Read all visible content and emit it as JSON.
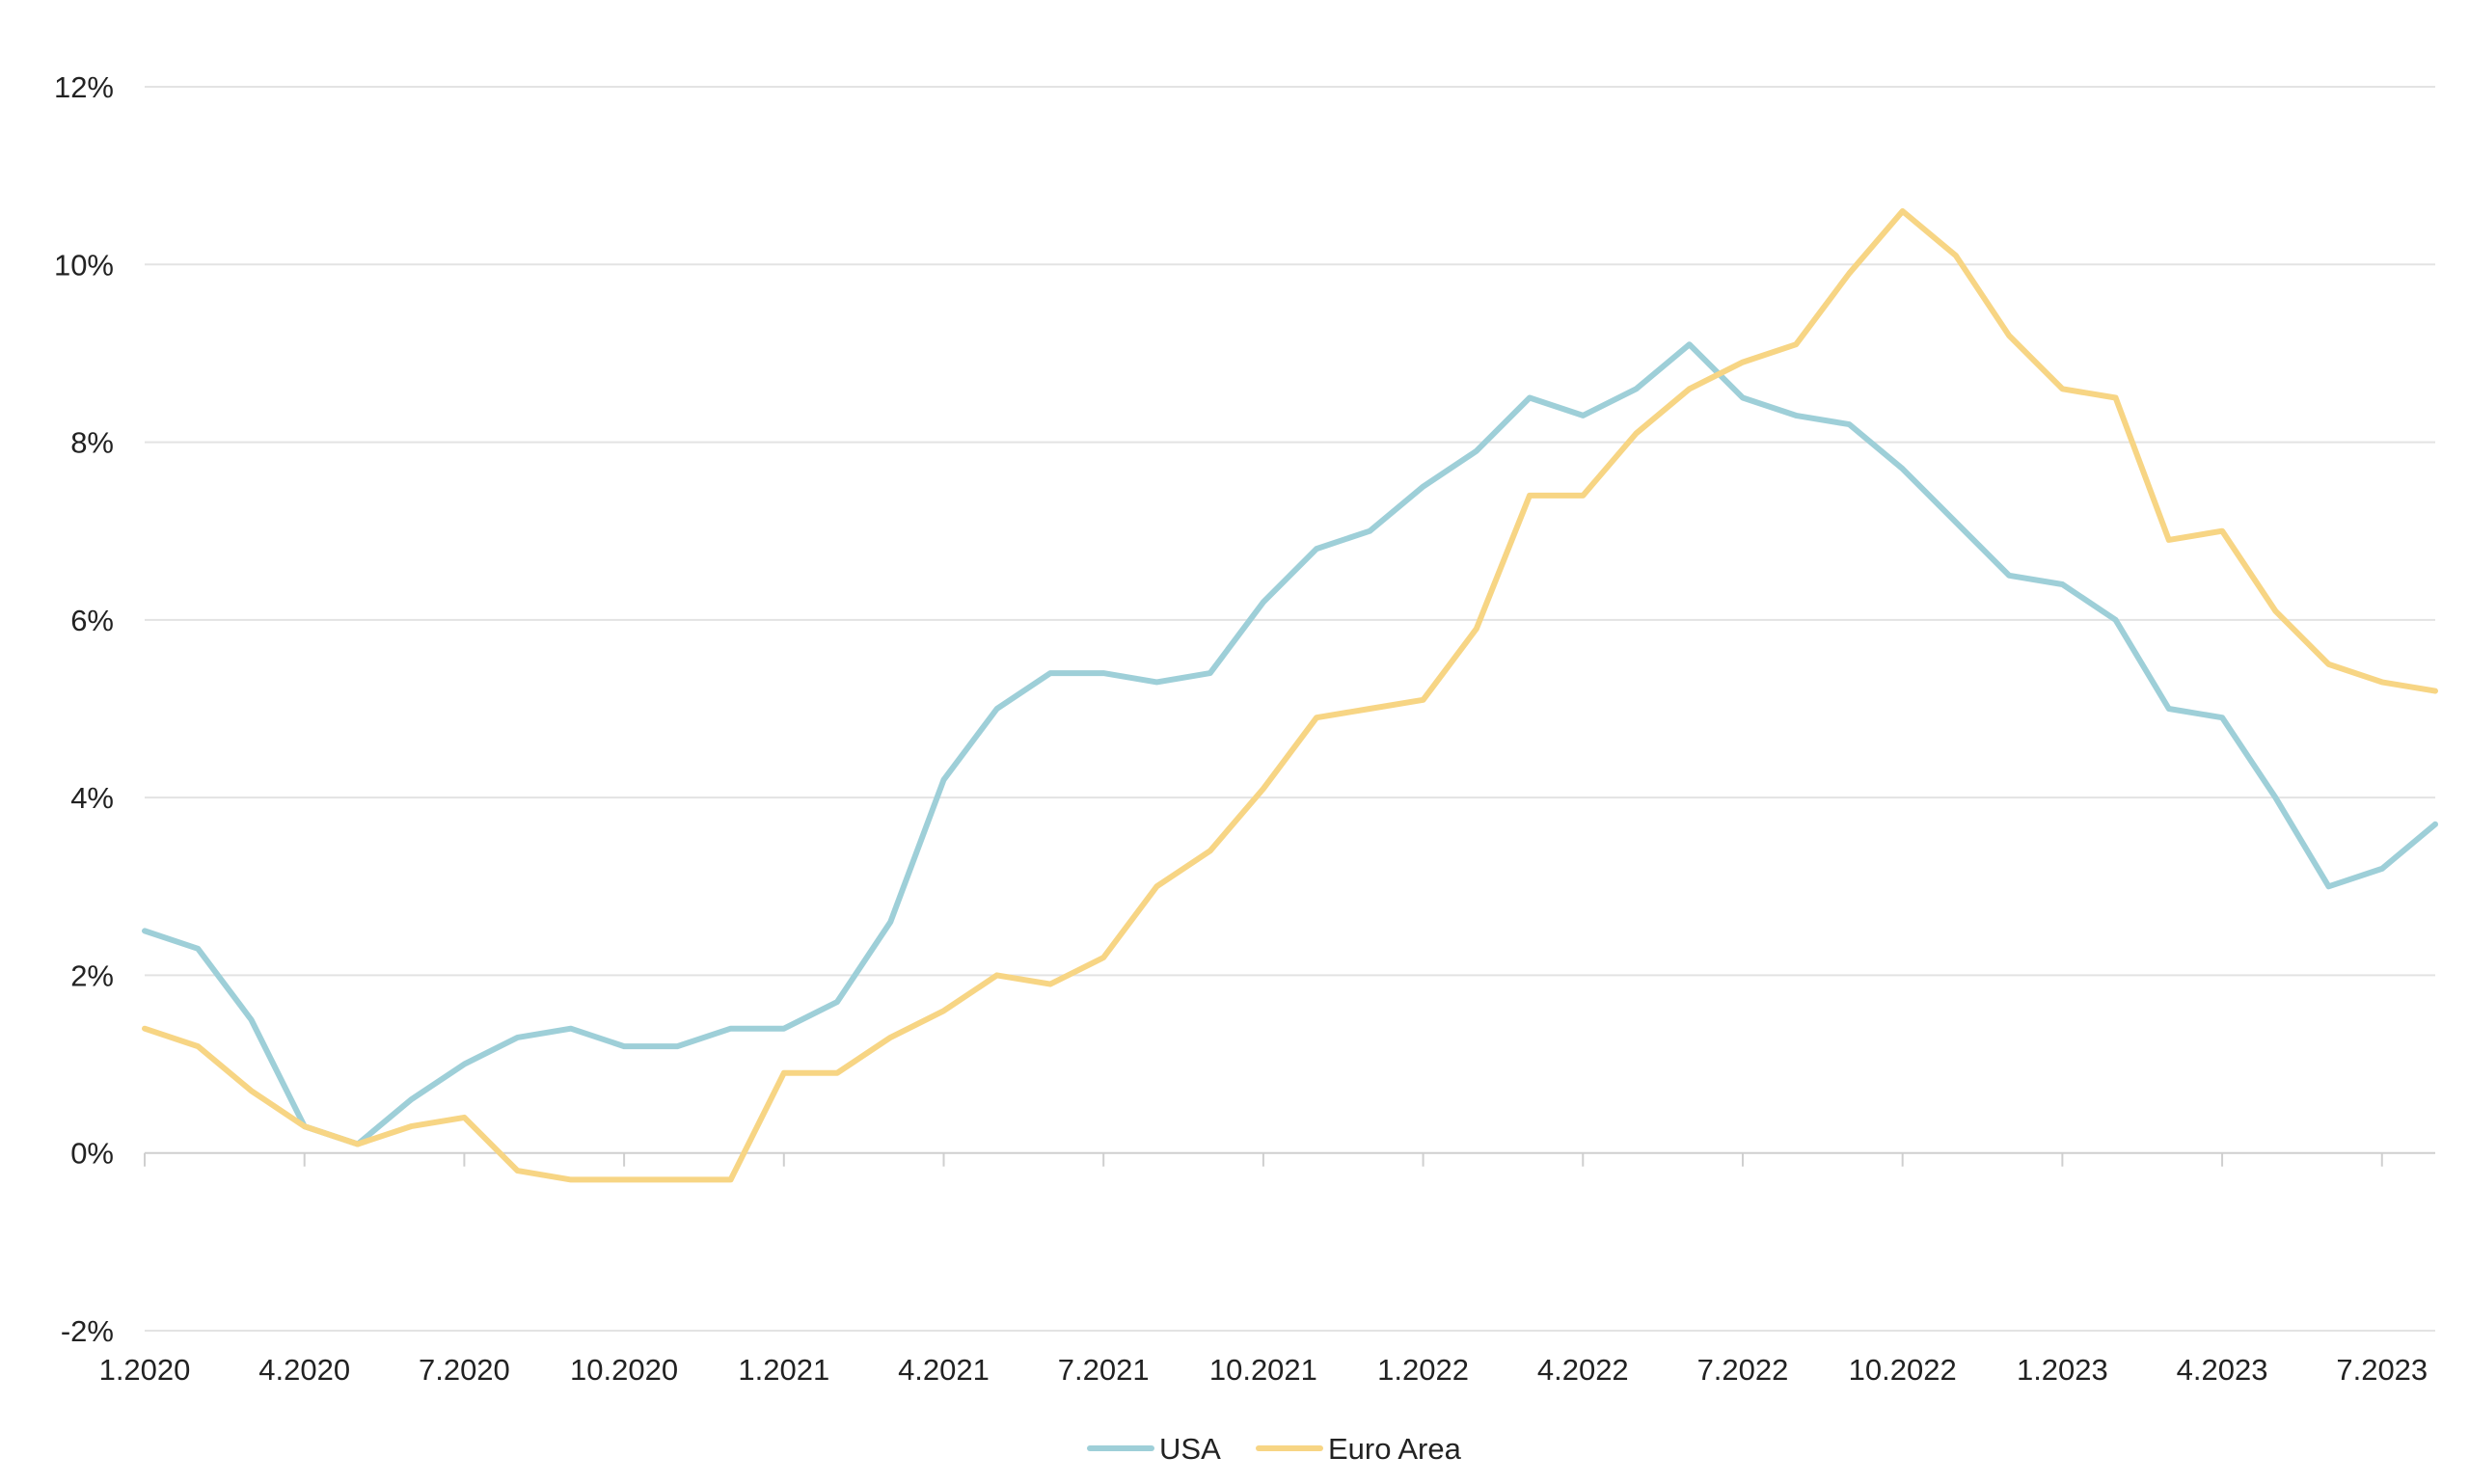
{
  "chart_data": {
    "type": "line",
    "title": "",
    "xlabel": "",
    "ylabel": "",
    "x": [
      "1.2020",
      "2.2020",
      "3.2020",
      "4.2020",
      "5.2020",
      "6.2020",
      "7.2020",
      "8.2020",
      "9.2020",
      "10.2020",
      "11.2020",
      "12.2020",
      "1.2021",
      "2.2021",
      "3.2021",
      "4.2021",
      "5.2021",
      "6.2021",
      "7.2021",
      "8.2021",
      "9.2021",
      "10.2021",
      "11.2021",
      "12.2021",
      "1.2022",
      "2.2022",
      "3.2022",
      "4.2022",
      "5.2022",
      "6.2022",
      "7.2022",
      "8.2022",
      "9.2022",
      "10.2022",
      "11.2022",
      "12.2022",
      "1.2023",
      "2.2023",
      "3.2023",
      "4.2023",
      "5.2023",
      "6.2023",
      "7.2023",
      "8.2023"
    ],
    "x_tick_labels": [
      "1.2020",
      "4.2020",
      "7.2020",
      "10.2020",
      "1.2021",
      "4.2021",
      "7.2021",
      "10.2021",
      "1.2022",
      "4.2022",
      "7.2022",
      "10.2022",
      "1.2023",
      "4.2023",
      "7.2023"
    ],
    "y_ticks": [
      -2,
      0,
      2,
      4,
      6,
      8,
      10,
      12
    ],
    "y_tick_labels": [
      "-2%",
      "0%",
      "2%",
      "4%",
      "6%",
      "8%",
      "10%",
      "12%"
    ],
    "ylim": [
      -2,
      12
    ],
    "grid": true,
    "legend_position": "bottom-center",
    "series": [
      {
        "name": "USA",
        "color": "#9ecfd8",
        "values": [
          2.5,
          2.3,
          1.5,
          0.3,
          0.1,
          0.6,
          1.0,
          1.3,
          1.4,
          1.2,
          1.2,
          1.4,
          1.4,
          1.7,
          2.6,
          4.2,
          5.0,
          5.4,
          5.4,
          5.3,
          5.4,
          6.2,
          6.8,
          7.0,
          7.5,
          7.9,
          8.5,
          8.3,
          8.6,
          9.1,
          8.5,
          8.3,
          8.2,
          7.7,
          7.1,
          6.5,
          6.4,
          6.0,
          5.0,
          4.9,
          4.0,
          3.0,
          3.2,
          3.7
        ]
      },
      {
        "name": "Euro Area",
        "color": "#f7d584",
        "values": [
          1.4,
          1.2,
          0.7,
          0.3,
          0.1,
          0.3,
          0.4,
          -0.2,
          -0.3,
          -0.3,
          -0.3,
          -0.3,
          0.9,
          0.9,
          1.3,
          1.6,
          2.0,
          1.9,
          2.2,
          3.0,
          3.4,
          4.1,
          4.9,
          5.0,
          5.1,
          5.9,
          7.4,
          7.4,
          8.1,
          8.6,
          8.9,
          9.1,
          9.9,
          10.6,
          10.1,
          9.2,
          8.6,
          8.5,
          6.9,
          7.0,
          6.1,
          5.5,
          5.3,
          5.2
        ]
      }
    ]
  }
}
